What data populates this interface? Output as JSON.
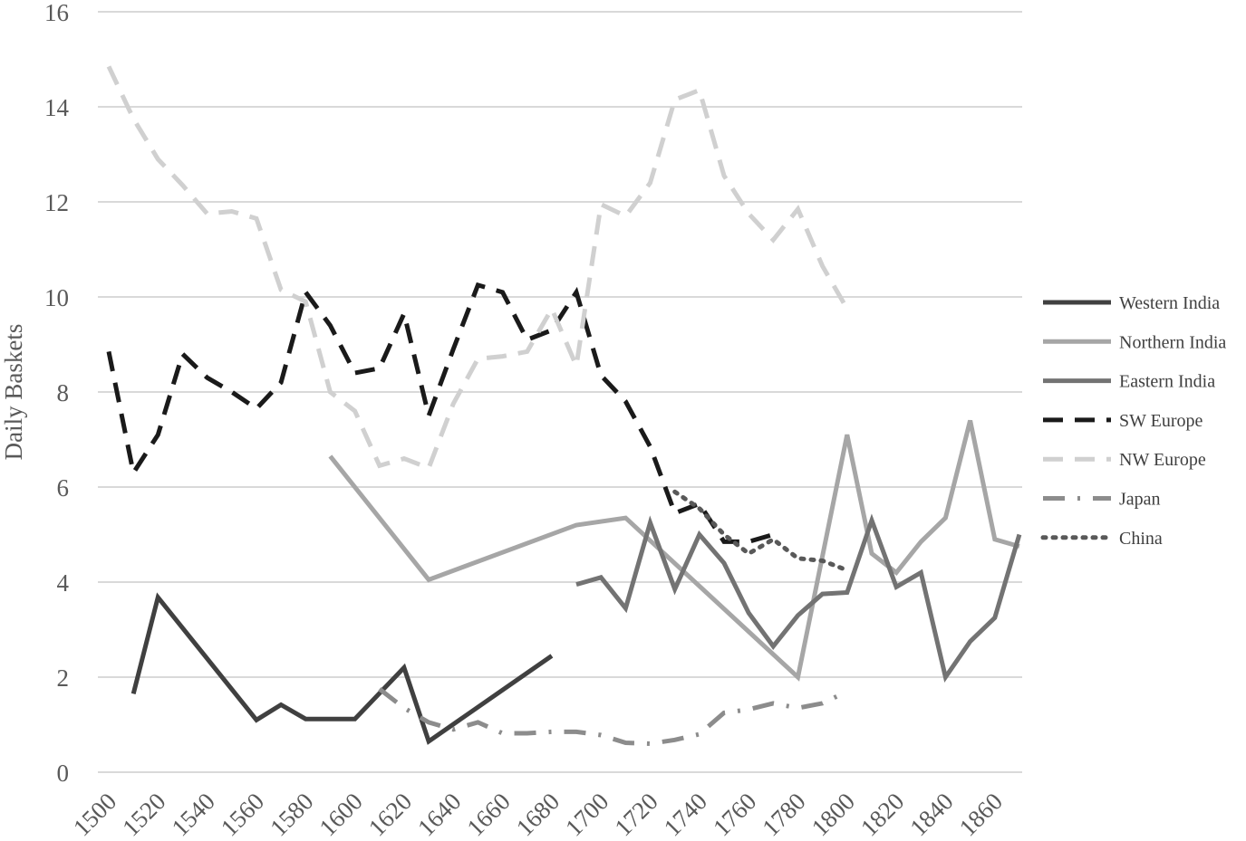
{
  "chart_data": {
    "type": "line",
    "ylabel": "Daily Baskets",
    "xlabel": "",
    "ylim": [
      0,
      16
    ],
    "xlim": [
      1500,
      1870
    ],
    "yticks": [
      0,
      2,
      4,
      6,
      8,
      10,
      12,
      14,
      16
    ],
    "xticks": [
      1500,
      1520,
      1540,
      1560,
      1580,
      1600,
      1620,
      1640,
      1660,
      1680,
      1700,
      1720,
      1740,
      1760,
      1780,
      1800,
      1820,
      1840,
      1860
    ],
    "grid": "horizontal",
    "legend_position": "right",
    "series": [
      {
        "name": "Western India",
        "color": "#404040",
        "style": "solid",
        "points": [
          [
            1510,
            1.65
          ],
          [
            1520,
            3.68
          ],
          [
            1560,
            1.1
          ],
          [
            1570,
            1.42
          ],
          [
            1580,
            1.12
          ],
          [
            1600,
            1.12
          ],
          [
            1620,
            2.2
          ],
          [
            1630,
            0.65
          ],
          [
            1680,
            2.45
          ]
        ]
      },
      {
        "name": "Northern India",
        "color": "#a6a6a6",
        "style": "solid",
        "points": [
          [
            1590,
            6.65
          ],
          [
            1630,
            4.05
          ],
          [
            1690,
            5.2
          ],
          [
            1710,
            5.35
          ],
          [
            1780,
            2.0
          ],
          [
            1800,
            7.1
          ],
          [
            1810,
            4.6
          ],
          [
            1820,
            4.2
          ],
          [
            1830,
            4.85
          ],
          [
            1840,
            5.35
          ],
          [
            1850,
            7.4
          ],
          [
            1860,
            4.9
          ],
          [
            1870,
            4.75
          ]
        ]
      },
      {
        "name": "Eastern India",
        "color": "#737373",
        "style": "solid",
        "points": [
          [
            1690,
            3.95
          ],
          [
            1700,
            4.1
          ],
          [
            1710,
            3.45
          ],
          [
            1720,
            5.25
          ],
          [
            1730,
            3.85
          ],
          [
            1740,
            5.0
          ],
          [
            1750,
            4.4
          ],
          [
            1760,
            3.35
          ],
          [
            1770,
            2.65
          ],
          [
            1780,
            3.3
          ],
          [
            1790,
            3.75
          ],
          [
            1800,
            3.78
          ],
          [
            1810,
            5.3
          ],
          [
            1820,
            3.9
          ],
          [
            1830,
            4.2
          ],
          [
            1840,
            2.0
          ],
          [
            1850,
            2.75
          ],
          [
            1860,
            3.25
          ],
          [
            1870,
            5.0
          ]
        ]
      },
      {
        "name": "SW Europe",
        "color": "#1a1a1a",
        "style": "dash",
        "points": [
          [
            1500,
            8.85
          ],
          [
            1510,
            6.3
          ],
          [
            1520,
            7.1
          ],
          [
            1530,
            8.8
          ],
          [
            1540,
            8.3
          ],
          [
            1550,
            8.0
          ],
          [
            1560,
            7.65
          ],
          [
            1570,
            8.2
          ],
          [
            1580,
            10.1
          ],
          [
            1590,
            9.4
          ],
          [
            1600,
            8.4
          ],
          [
            1610,
            8.5
          ],
          [
            1620,
            9.65
          ],
          [
            1630,
            7.5
          ],
          [
            1640,
            8.9
          ],
          [
            1650,
            10.25
          ],
          [
            1660,
            10.1
          ],
          [
            1670,
            9.1
          ],
          [
            1680,
            9.3
          ],
          [
            1690,
            10.1
          ],
          [
            1700,
            8.35
          ],
          [
            1710,
            7.8
          ],
          [
            1720,
            6.85
          ],
          [
            1730,
            5.45
          ],
          [
            1740,
            5.65
          ],
          [
            1750,
            4.85
          ],
          [
            1760,
            4.85
          ],
          [
            1770,
            5.0
          ]
        ]
      },
      {
        "name": "NW Europe",
        "color": "#d0d0d0",
        "style": "dash",
        "points": [
          [
            1500,
            14.85
          ],
          [
            1510,
            13.75
          ],
          [
            1520,
            12.9
          ],
          [
            1530,
            12.35
          ],
          [
            1540,
            11.75
          ],
          [
            1550,
            11.8
          ],
          [
            1560,
            11.65
          ],
          [
            1570,
            10.15
          ],
          [
            1580,
            9.9
          ],
          [
            1590,
            8.0
          ],
          [
            1600,
            7.6
          ],
          [
            1610,
            6.45
          ],
          [
            1620,
            6.6
          ],
          [
            1630,
            6.4
          ],
          [
            1640,
            7.75
          ],
          [
            1650,
            8.7
          ],
          [
            1660,
            8.75
          ],
          [
            1670,
            8.85
          ],
          [
            1680,
            9.75
          ],
          [
            1690,
            8.55
          ],
          [
            1700,
            11.95
          ],
          [
            1710,
            11.7
          ],
          [
            1720,
            12.4
          ],
          [
            1730,
            14.15
          ],
          [
            1740,
            14.35
          ],
          [
            1750,
            12.55
          ],
          [
            1760,
            11.75
          ],
          [
            1770,
            11.2
          ],
          [
            1780,
            11.85
          ],
          [
            1790,
            10.65
          ],
          [
            1800,
            9.75
          ]
        ]
      },
      {
        "name": "Japan",
        "color": "#8c8c8c",
        "style": "dashdot",
        "points": [
          [
            1610,
            1.75
          ],
          [
            1620,
            1.35
          ],
          [
            1630,
            1.05
          ],
          [
            1640,
            0.9
          ],
          [
            1650,
            1.05
          ],
          [
            1660,
            0.82
          ],
          [
            1670,
            0.82
          ],
          [
            1680,
            0.85
          ],
          [
            1690,
            0.85
          ],
          [
            1700,
            0.78
          ],
          [
            1710,
            0.62
          ],
          [
            1720,
            0.6
          ],
          [
            1730,
            0.68
          ],
          [
            1740,
            0.8
          ],
          [
            1750,
            1.25
          ],
          [
            1760,
            1.32
          ],
          [
            1770,
            1.45
          ],
          [
            1780,
            1.35
          ],
          [
            1790,
            1.45
          ],
          [
            1800,
            1.7
          ]
        ]
      },
      {
        "name": "China",
        "color": "#595959",
        "style": "dot",
        "points": [
          [
            1730,
            5.9
          ],
          [
            1740,
            5.55
          ],
          [
            1750,
            5.0
          ],
          [
            1760,
            4.6
          ],
          [
            1770,
            4.9
          ],
          [
            1780,
            4.5
          ],
          [
            1790,
            4.45
          ],
          [
            1800,
            4.25
          ]
        ]
      }
    ]
  }
}
